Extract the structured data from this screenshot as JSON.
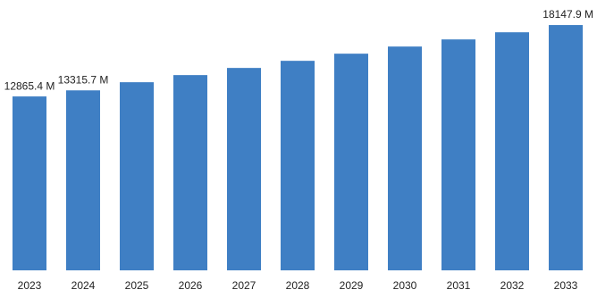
{
  "chart_data": {
    "type": "bar",
    "categories": [
      "2023",
      "2024",
      "2025",
      "2026",
      "2027",
      "2028",
      "2029",
      "2030",
      "2031",
      "2032",
      "2033"
    ],
    "values": [
      12865.4,
      13315.7,
      13918,
      14446,
      14974,
      15501,
      16029,
      16557,
      17084,
      17612,
      18147.9
    ],
    "value_labels": [
      "12865.4 M",
      "13315.7 M",
      null,
      null,
      null,
      null,
      null,
      null,
      null,
      null,
      "18147.9 M"
    ],
    "color": "#3f7fc4",
    "ylim": [
      0,
      20000
    ]
  }
}
